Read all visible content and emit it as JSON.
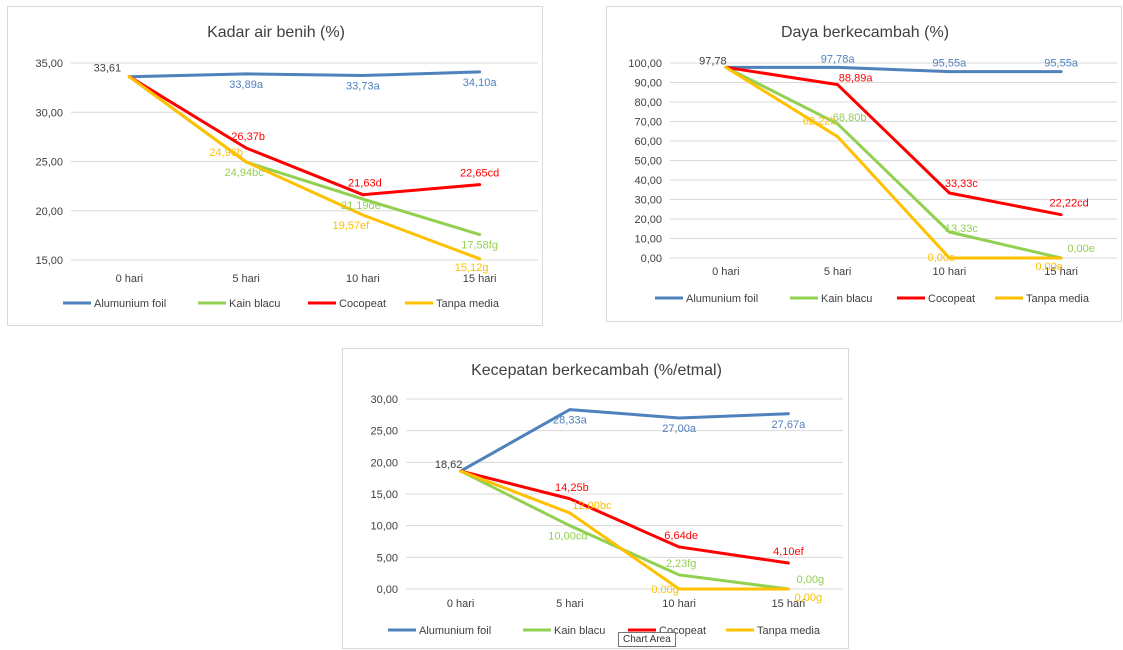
{
  "tooltip": "Chart Area",
  "chart_data": [
    {
      "type": "line",
      "title": "Kadar air benih (%)",
      "categories": [
        "0 hari",
        "5 hari",
        "10 hari",
        "15 hari"
      ],
      "ylim": [
        15,
        35
      ],
      "yticks": [
        "15,00",
        "20,00",
        "25,00",
        "30,00",
        "35,00"
      ],
      "ytick_values": [
        15,
        20,
        25,
        30,
        35
      ],
      "grid": true,
      "legend_position": "bottom",
      "series": [
        {
          "name": "Alumunium foil",
          "color": "#4f81bd",
          "values": [
            33.61,
            33.89,
            33.73,
            34.1
          ],
          "labels": [
            "33,61",
            "33,89a",
            "33,73a",
            "34,10a"
          ]
        },
        {
          "name": "Kain blacu",
          "color": "#92d050",
          "values": [
            33.61,
            24.94,
            21.19,
            17.58
          ],
          "labels": [
            "",
            "24,94bc",
            "21,19de",
            "17,58fg"
          ]
        },
        {
          "name": "Cocopeat",
          "color": "#ff0000",
          "values": [
            33.61,
            26.37,
            21.63,
            22.65
          ],
          "labels": [
            "",
            "26,37b",
            "21,63d",
            "22,65cd"
          ]
        },
        {
          "name": "Tanpa media",
          "color": "#ffc000",
          "values": [
            33.61,
            24.96,
            19.57,
            15.12
          ],
          "labels": [
            "",
            "24,96b",
            "19,57ef",
            "15,12g"
          ]
        }
      ]
    },
    {
      "type": "line",
      "title": "Daya berkecambah (%)",
      "categories": [
        "0 hari",
        "5 hari",
        "10 hari",
        "15 hari"
      ],
      "ylim": [
        0,
        100
      ],
      "yticks": [
        "0,00",
        "10,00",
        "20,00",
        "30,00",
        "40,00",
        "50,00",
        "60,00",
        "70,00",
        "80,00",
        "90,00",
        "100,00"
      ],
      "ytick_values": [
        0,
        10,
        20,
        30,
        40,
        50,
        60,
        70,
        80,
        90,
        100
      ],
      "grid": true,
      "legend_position": "bottom",
      "series": [
        {
          "name": "Alumunium foil",
          "color": "#4f81bd",
          "values": [
            97.78,
            97.78,
            95.55,
            95.55
          ],
          "labels": [
            "97,78",
            "97,78a",
            "95,55a",
            "95,55a"
          ]
        },
        {
          "name": "Kain blacu",
          "color": "#92d050",
          "values": [
            97.78,
            68.8,
            13.33,
            0.0
          ],
          "labels": [
            "",
            "68,80b",
            "13,33c",
            "0,00e"
          ]
        },
        {
          "name": "Cocopeat",
          "color": "#ff0000",
          "values": [
            97.78,
            88.89,
            33.33,
            22.22
          ],
          "labels": [
            "",
            "88,89a",
            "33,33c",
            "22,22cd"
          ]
        },
        {
          "name": "Tanpa media",
          "color": "#ffc000",
          "values": [
            97.78,
            62.22,
            0.0,
            0.0
          ],
          "labels": [
            "",
            "62,22b",
            "0,00e",
            "0,00e"
          ]
        }
      ]
    },
    {
      "type": "line",
      "title": "Kecepatan berkecambah (%/etmal)",
      "categories": [
        "0 hari",
        "5 hari",
        "10 hari",
        "15 hari"
      ],
      "ylim": [
        0,
        30
      ],
      "yticks": [
        "0,00",
        "5,00",
        "10,00",
        "15,00",
        "20,00",
        "25,00",
        "30,00"
      ],
      "ytick_values": [
        0,
        5,
        10,
        15,
        20,
        25,
        30
      ],
      "grid": true,
      "legend_position": "bottom",
      "series": [
        {
          "name": "Alumunium foil",
          "color": "#4f81bd",
          "values": [
            18.62,
            28.33,
            27.0,
            27.67
          ],
          "labels": [
            "18,62",
            "28,33a",
            "27,00a",
            "27,67a"
          ]
        },
        {
          "name": "Kain blacu",
          "color": "#92d050",
          "values": [
            18.62,
            10.0,
            2.23,
            0.0
          ],
          "labels": [
            "",
            "10,00cd",
            "2,23fg",
            "0,00g"
          ]
        },
        {
          "name": "Cocopeat",
          "color": "#ff0000",
          "values": [
            18.62,
            14.25,
            6.64,
            4.1
          ],
          "labels": [
            "",
            "14,25b",
            "6,64de",
            "4,10ef"
          ]
        },
        {
          "name": "Tanpa media",
          "color": "#ffc000",
          "values": [
            18.62,
            12.0,
            0.0,
            0.0
          ],
          "labels": [
            "",
            "12,00bc",
            "0,00g",
            "0,00g"
          ]
        }
      ]
    }
  ]
}
